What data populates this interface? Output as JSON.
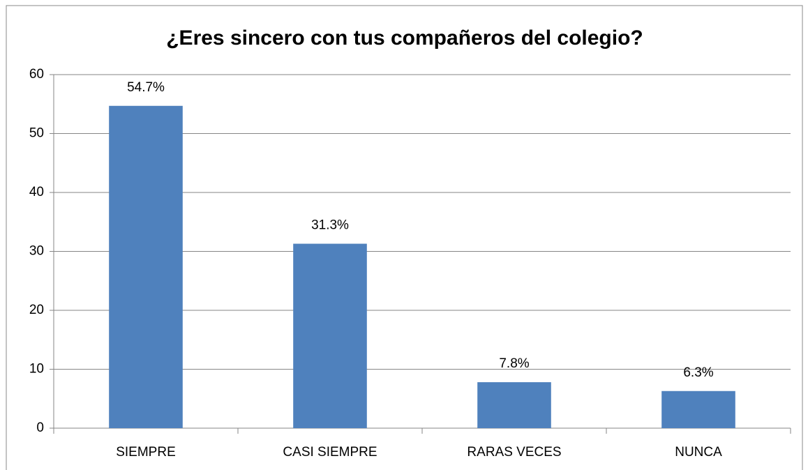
{
  "chart_data": {
    "type": "bar",
    "title": "¿Eres sincero con tus compañeros del colegio?",
    "categories": [
      "SIEMPRE",
      "CASI SIEMPRE",
      "RARAS VECES",
      "NUNCA"
    ],
    "values": [
      54.7,
      31.3,
      7.8,
      6.3
    ],
    "value_labels": [
      "54.7%",
      "31.3%",
      "7.8%",
      "6.3%"
    ],
    "color": "#4f81bd",
    "ylim": [
      0,
      60
    ],
    "yticks": [
      0,
      10,
      20,
      30,
      40,
      50,
      60
    ],
    "grid": true
  }
}
